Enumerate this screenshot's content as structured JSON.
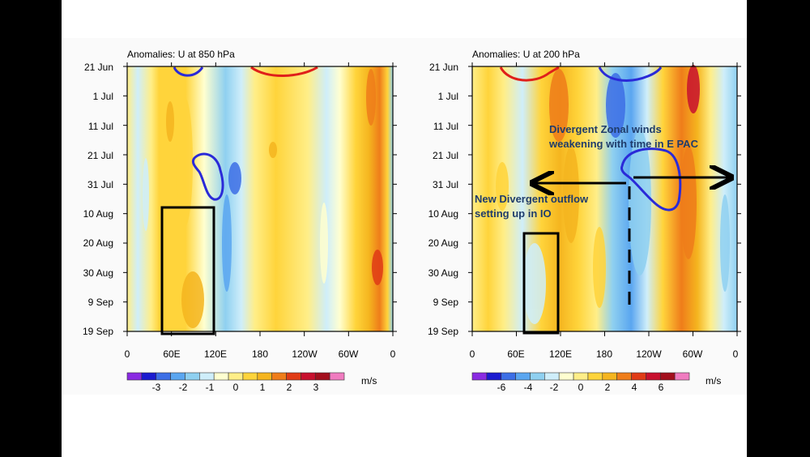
{
  "chart_data": [
    {
      "type": "heatmap",
      "title": "Anomalies: U at 850 hPa",
      "y_ticks": [
        "21 Jun",
        "1 Jul",
        "11 Jul",
        "21 Jul",
        "31 Jul",
        "10 Aug",
        "20 Aug",
        "30 Aug",
        "9 Sep",
        "19 Sep"
      ],
      "x_ticks": [
        "0",
        "60E",
        "120E",
        "180",
        "120W",
        "60W",
        "0"
      ],
      "colorbar": {
        "unit": "m/s",
        "labels": [
          "-3",
          "-2",
          "-1",
          "0",
          "1",
          "2",
          "3"
        ],
        "colors": [
          "#8a2be2",
          "#1b1bd0",
          "#3c6ee6",
          "#5aa6f0",
          "#8fd0f0",
          "#cfeefa",
          "#ffffd0",
          "#ffee88",
          "#ffd43b",
          "#f5b51f",
          "#ef7d1a",
          "#e03b16",
          "#c8102e",
          "#a30f1d",
          "#f07cc0"
        ]
      },
      "annotations": []
    },
    {
      "type": "heatmap",
      "title": "Anomalies: U at 200 hPa",
      "y_ticks": [
        "21 Jun",
        "1 Jul",
        "11 Jul",
        "21 Jul",
        "31 Jul",
        "10 Aug",
        "20 Aug",
        "30 Aug",
        "9 Sep",
        "19 Sep"
      ],
      "x_ticks": [
        "0",
        "60E",
        "120E",
        "180",
        "120W",
        "60W",
        "0"
      ],
      "colorbar": {
        "unit": "m/s",
        "labels": [
          "-6",
          "-4",
          "-2",
          "0",
          "2",
          "4",
          "6"
        ],
        "colors": [
          "#8a2be2",
          "#1b1bd0",
          "#3c6ee6",
          "#5aa6f0",
          "#8fd0f0",
          "#cfeefa",
          "#ffffd0",
          "#ffee88",
          "#ffd43b",
          "#f5b51f",
          "#ef7d1a",
          "#e03b16",
          "#c8102e",
          "#a30f1d",
          "#f07cc0"
        ]
      },
      "annotations": [
        "Divergent Zonal winds",
        "weakening with time in E PAC",
        "New Divergent outflow",
        "setting up in IO"
      ]
    }
  ]
}
